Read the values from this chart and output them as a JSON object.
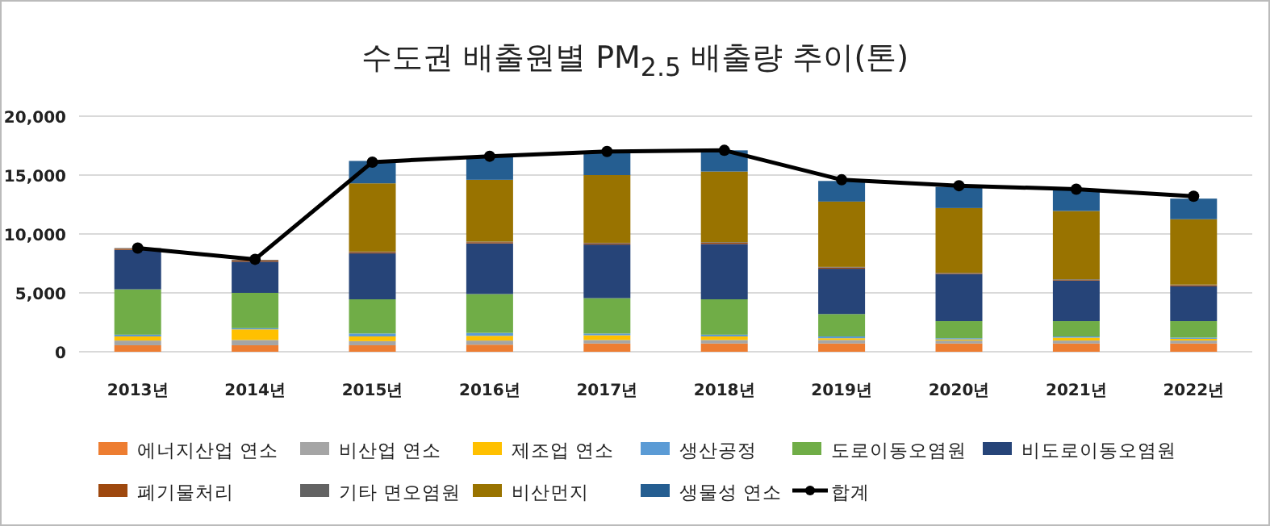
{
  "chart_data": {
    "type": "bar",
    "stacked": true,
    "title": "수도권 배출원별 PM$_{2.5}$ 배출량 추이(톤)",
    "categories": [
      "2013년",
      "2014년",
      "2015년",
      "2016년",
      "2017년",
      "2018년",
      "2019년",
      "2020년",
      "2021년",
      "2022년"
    ],
    "ylim": [
      0,
      20000
    ],
    "yticks": [
      {
        "value": 0,
        "label": "0"
      },
      {
        "value": 5000,
        "label": "5,000"
      },
      {
        "value": 10000,
        "label": "10,000"
      },
      {
        "value": 15000,
        "label": "15,000"
      },
      {
        "value": 20000,
        "label": "20,000"
      }
    ],
    "grid": "y",
    "legend": "bottom",
    "series": [
      {
        "name": "에너지산업 연소",
        "color": "#ed7d31",
        "values": [
          550,
          550,
          550,
          600,
          700,
          700,
          700,
          700,
          700,
          700
        ]
      },
      {
        "name": "비산업 연소",
        "color": "#a5a5a5",
        "values": [
          400,
          450,
          350,
          350,
          300,
          300,
          300,
          250,
          250,
          250
        ]
      },
      {
        "name": "제조업 연소",
        "color": "#ffc000",
        "values": [
          350,
          900,
          400,
          400,
          400,
          300,
          150,
          100,
          250,
          150
        ]
      },
      {
        "name": "생산공정",
        "color": "#5b9bd5",
        "values": [
          150,
          100,
          250,
          250,
          150,
          150,
          150,
          100,
          100,
          100
        ]
      },
      {
        "name": "도로이동오염원",
        "color": "#70ad47",
        "values": [
          3850,
          3000,
          2900,
          3300,
          3000,
          3000,
          1900,
          1450,
          1300,
          1400
        ]
      },
      {
        "name": "비도로이동오염원",
        "color": "#264478",
        "values": [
          3350,
          2650,
          3900,
          4300,
          4550,
          4700,
          3850,
          4000,
          3450,
          2950
        ]
      },
      {
        "name": "폐기물처리",
        "color": "#9e480e",
        "values": [
          100,
          100,
          100,
          100,
          100,
          100,
          100,
          50,
          50,
          100
        ]
      },
      {
        "name": "기타 면오염원",
        "color": "#636363",
        "values": [
          50,
          50,
          50,
          50,
          50,
          50,
          50,
          50,
          50,
          50
        ]
      },
      {
        "name": "비산먼지",
        "color": "#997300",
        "values": [
          0,
          0,
          5800,
          5250,
          5750,
          6000,
          5550,
          5500,
          5800,
          5550
        ]
      },
      {
        "name": "생물성 연소",
        "color": "#255e91",
        "values": [
          0,
          0,
          1900,
          2000,
          2000,
          1800,
          1750,
          1800,
          1850,
          1750
        ]
      },
      {
        "name": "합계",
        "color": "#000000",
        "type": "line",
        "marker": "circle",
        "values": [
          8800,
          7850,
          16100,
          16600,
          17000,
          17100,
          14600,
          14100,
          13800,
          13200
        ]
      }
    ]
  }
}
